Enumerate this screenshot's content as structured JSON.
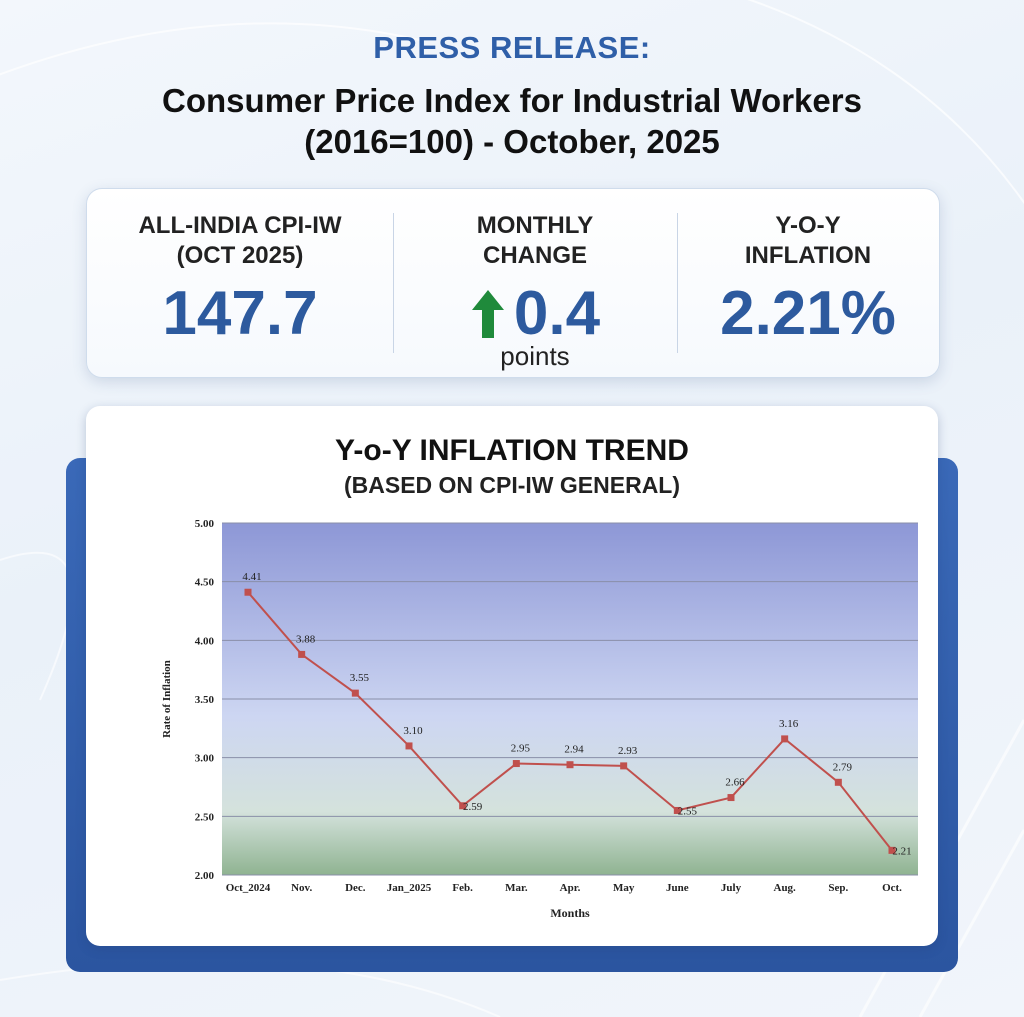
{
  "header": {
    "kicker": "PRESS RELEASE:",
    "title_line1": "Consumer Price Index for Industrial Workers",
    "title_line2": "(2016=100) - October, 2025"
  },
  "stats": {
    "cpi": {
      "label_line1": "ALL-INDIA CPI-IW",
      "label_line2": "(OCT 2025)",
      "value": "147.7"
    },
    "monthly": {
      "label_line1": "MONTHLY",
      "label_line2": "CHANGE",
      "value": "0.4",
      "unit": "points",
      "icon": "up-arrow-icon"
    },
    "yoy": {
      "label_line1": "Y-O-Y",
      "label_line2": "INFLATION",
      "value": "2.21%"
    }
  },
  "colors": {
    "accent": "#2d5a9e",
    "arrow": "#1f8a3b",
    "line": "#c0504d",
    "card_back": "#2b55a0"
  },
  "chart": {
    "title": "Y-o-Y INFLATION TREND",
    "subtitle": "(BASED ON CPI-IW GENERAL)"
  },
  "chart_data": {
    "type": "line",
    "categories": [
      "Oct_2024",
      "Nov.",
      "Dec.",
      "Jan_2025",
      "Feb.",
      "Mar.",
      "Apr.",
      "May",
      "June",
      "July",
      "Aug.",
      "Sep.",
      "Oct."
    ],
    "values": [
      4.41,
      3.88,
      3.55,
      3.1,
      2.59,
      2.95,
      2.94,
      2.93,
      2.55,
      2.66,
      3.16,
      2.79,
      2.21
    ],
    "value_labels": [
      "4.41",
      "3.88",
      "3.55",
      "3.10",
      "2.59",
      "2.95",
      "2.94",
      "2.93",
      "2.55",
      "2.66",
      "3.16",
      "2.79",
      "2.21"
    ],
    "xlabel": "Months",
    "ylabel": "Rate of Inflation",
    "ylim": [
      2.0,
      5.0
    ],
    "yticks": [
      "2.00",
      "2.50",
      "3.00",
      "3.50",
      "4.00",
      "4.50",
      "5.00"
    ],
    "grid": true,
    "legend": "none"
  }
}
